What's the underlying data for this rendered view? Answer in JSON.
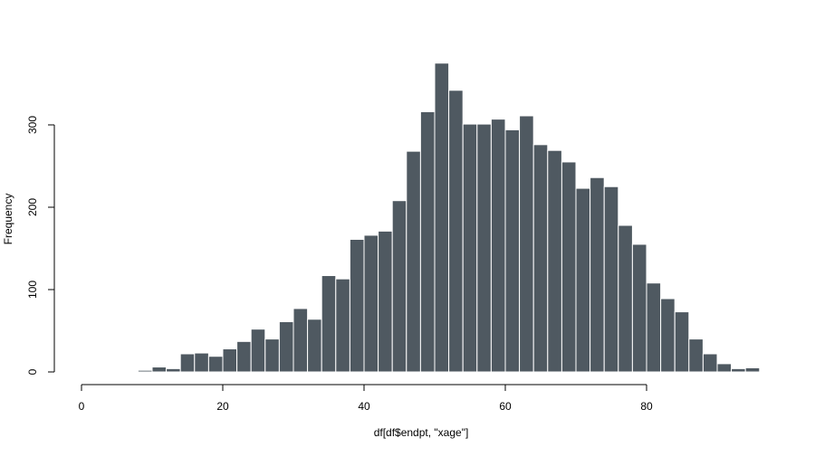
{
  "chart_data": {
    "type": "bar",
    "title": "",
    "xlabel": "df[df$endpt, \"xage\"]",
    "ylabel": "Frequency",
    "xlim": [
      0,
      96
    ],
    "ylim": [
      0,
      375
    ],
    "x_ticks": [
      "0",
      "20",
      "40",
      "60",
      "80"
    ],
    "x_tick_values": [
      0,
      20,
      40,
      60,
      80
    ],
    "y_ticks": [
      "0",
      "100",
      "200",
      "300"
    ],
    "y_tick_values": [
      0,
      100,
      200,
      300
    ],
    "bin_width": 2,
    "bins_start": [
      6,
      8,
      10,
      12,
      14,
      16,
      18,
      20,
      22,
      24,
      26,
      28,
      30,
      32,
      34,
      36,
      38,
      40,
      42,
      44,
      46,
      48,
      50,
      52,
      54,
      56,
      58,
      60,
      62,
      64,
      66,
      68,
      70,
      72,
      74,
      76,
      78,
      80,
      82,
      84,
      86,
      88,
      90,
      92,
      94
    ],
    "values": [
      1,
      2,
      6,
      4,
      22,
      23,
      19,
      28,
      37,
      52,
      40,
      61,
      77,
      64,
      117,
      113,
      161,
      166,
      171,
      208,
      268,
      316,
      375,
      342,
      301,
      301,
      307,
      294,
      311,
      276,
      269,
      255,
      223,
      236,
      225,
      178,
      155,
      108,
      89,
      73,
      40,
      22,
      10,
      4,
      5
    ],
    "grid": false,
    "bar_color": "#4f5961",
    "bar_edge_color": "#ffffff"
  }
}
